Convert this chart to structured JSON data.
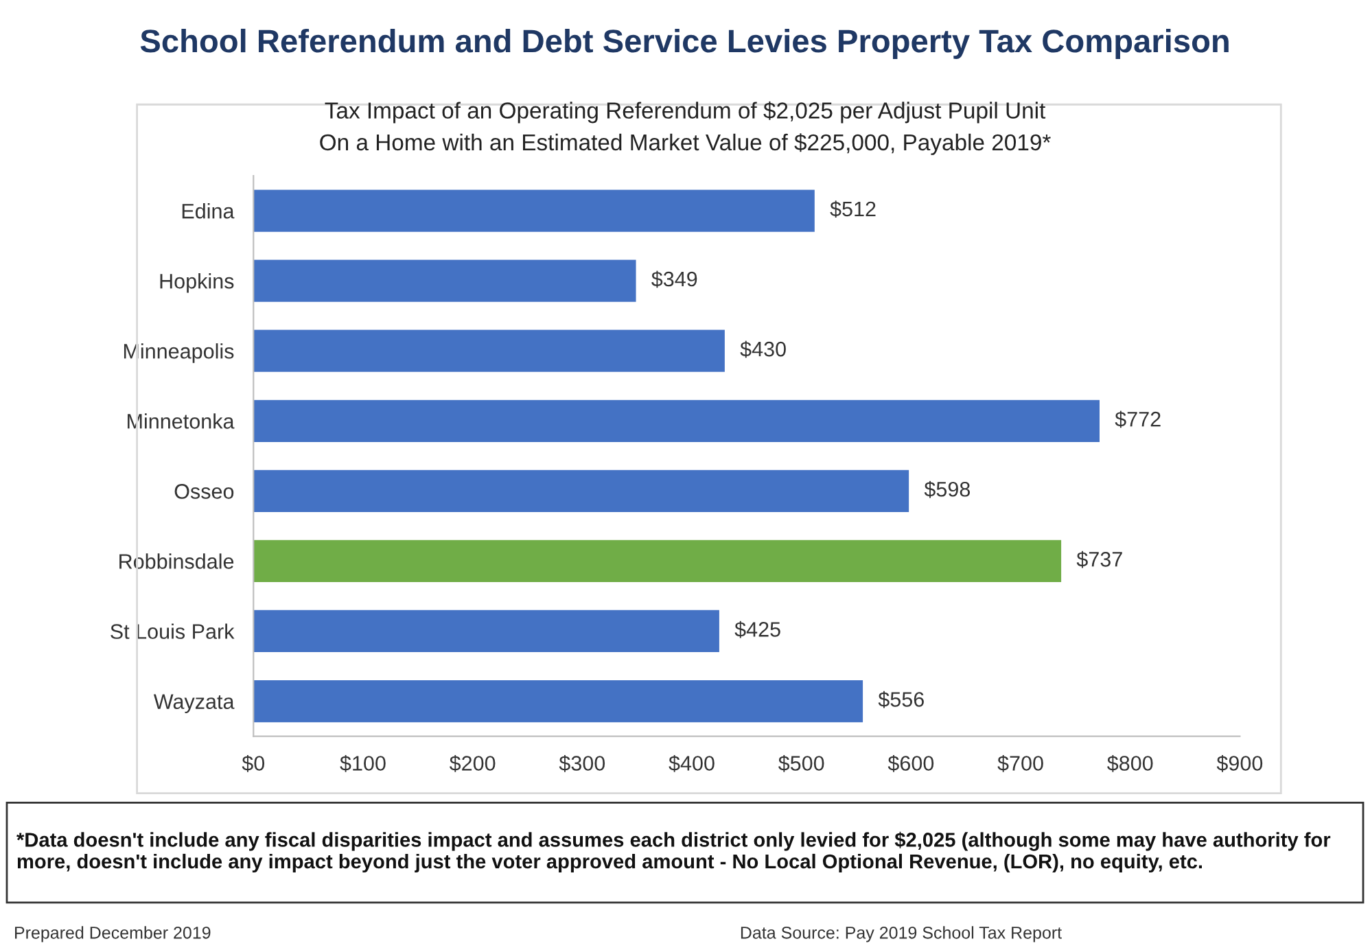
{
  "chart_data": {
    "type": "bar",
    "orientation": "horizontal",
    "title": "School Referendum and Debt Service Levies Property Tax Comparison",
    "subtitle": "Tax Impact of an Operating Referendum of $2,025 per Adjust Pupil Unit\nOn a Home with an Estimated Market Value of $225,000, Payable 2019*",
    "categories": [
      "Edina",
      "Hopkins",
      "Minneapolis",
      "Minnetonka",
      "Osseo",
      "Robbinsdale",
      "St Louis Park",
      "Wayzata"
    ],
    "values": [
      512,
      349,
      430,
      772,
      598,
      737,
      425,
      556
    ],
    "colors": [
      "#4472c4",
      "#4472c4",
      "#4472c4",
      "#4472c4",
      "#4472c4",
      "#70ad47",
      "#4472c4",
      "#4472c4"
    ],
    "value_labels": [
      "$512",
      "$349",
      "$430",
      "$772",
      "$598",
      "$737",
      "$425",
      "$556"
    ],
    "xlim": [
      0,
      900
    ],
    "xticks": [
      {
        "value": 0,
        "label": "$0"
      },
      {
        "value": 100,
        "label": "$100"
      },
      {
        "value": 200,
        "label": "$200"
      },
      {
        "value": 300,
        "label": "$300"
      },
      {
        "value": 400,
        "label": "$400"
      },
      {
        "value": 500,
        "label": "$500"
      },
      {
        "value": 600,
        "label": "$600"
      },
      {
        "value": 700,
        "label": "$700"
      },
      {
        "value": 800,
        "label": "$800"
      },
      {
        "value": 900,
        "label": "$900"
      }
    ],
    "grid": false,
    "annotations": [
      "*Data doesn't include any fiscal disparities impact and assumes each district only levied for $2,025 (although some may have authority for more, doesn't include any impact beyond just the voter approved amount - No Local Optional Revenue, (LOR), no equity, etc.",
      "Prepared December 2019",
      "Data Source: Pay 2019 School Tax Report"
    ]
  }
}
